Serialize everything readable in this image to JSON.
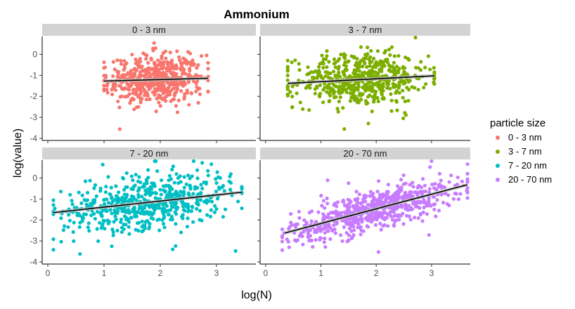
{
  "chart_data": {
    "type": "scatter",
    "title": "Ammonium",
    "xlabel": "log(N)",
    "ylabel": "log(value)",
    "xlim": [
      -0.1,
      3.7
    ],
    "ylim": [
      -4.1,
      0.85
    ],
    "x_ticks": [
      "0",
      "1",
      "2",
      "3"
    ],
    "y_ticks": [
      "0",
      "-1",
      "-2",
      "-3",
      "-4"
    ],
    "grid": false,
    "legend": {
      "title": "particle size",
      "position": "right",
      "entries": [
        "0 - 3 nm",
        "3 - 7 nm",
        "7 - 20 nm",
        "20 - 70 nm"
      ]
    },
    "panels": [
      {
        "strip": "0 - 3 nm",
        "color": "#F8766D",
        "n_points": 550,
        "x_range": [
          1.0,
          2.85
        ],
        "y_center": -1.25,
        "y_spread": 0.55,
        "fit": {
          "x": [
            1.0,
            2.85
          ],
          "y": [
            -1.27,
            -1.14
          ]
        }
      },
      {
        "strip": "3 - 7 nm",
        "color": "#7CAE00",
        "n_points": 550,
        "x_range": [
          0.4,
          3.05
        ],
        "y_center": -1.2,
        "y_spread": 0.6,
        "fit": {
          "x": [
            0.4,
            3.05
          ],
          "y": [
            -1.38,
            -1.02
          ]
        }
      },
      {
        "strip": "7 - 20 nm",
        "color": "#00BFC4",
        "n_points": 600,
        "x_range": [
          0.1,
          3.45
        ],
        "y_center": -1.2,
        "y_spread": 0.6,
        "fit": {
          "x": [
            0.1,
            3.45
          ],
          "y": [
            -1.65,
            -0.68
          ]
        }
      },
      {
        "strip": "20 - 70 nm",
        "color": "#C77CFF",
        "n_points": 650,
        "x_range": [
          0.3,
          3.65
        ],
        "y_center": -1.3,
        "y_spread": 0.45,
        "fit": {
          "x": [
            0.35,
            3.65
          ],
          "y": [
            -2.62,
            -0.32
          ]
        }
      }
    ]
  }
}
